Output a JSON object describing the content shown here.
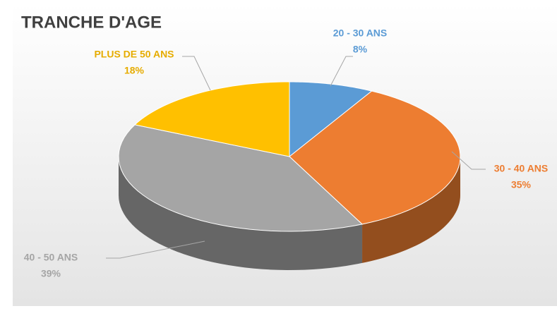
{
  "chart_data": {
    "type": "pie3d",
    "title": "TRANCHE D'AGE",
    "categories": [
      "20 - 30 ANS",
      "30 - 40 ANS",
      "40 - 50 ANS",
      "PLUS DE 50 ANS"
    ],
    "values": [
      8,
      35,
      39,
      18
    ],
    "value_labels": [
      "8%",
      "35%",
      "39%",
      "18%"
    ],
    "colors": [
      "#5b9bd5",
      "#ed7d31",
      "#a5a5a5",
      "#ffc000"
    ]
  }
}
